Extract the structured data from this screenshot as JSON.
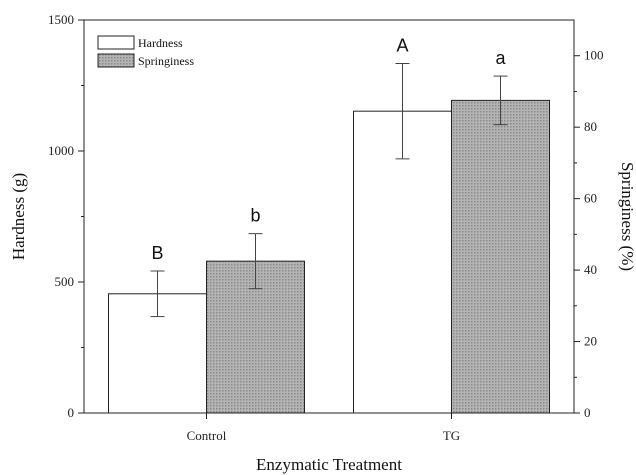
{
  "chart_data": {
    "type": "bar",
    "categories": [
      "Control",
      "TG"
    ],
    "xlabel": "Enzymatic Treatment",
    "ylabel": "Hardness (g)",
    "y2label": "Springiness (%)",
    "ylim": [
      0,
      1500
    ],
    "y2lim": [
      0,
      110
    ],
    "yticks": [
      0,
      500,
      1000,
      1500
    ],
    "y2ticks": [
      0,
      20,
      40,
      60,
      80,
      100
    ],
    "legend_position": "top-left",
    "grid": false,
    "series": [
      {
        "name": "Hardness",
        "axis": "left",
        "values": [
          455,
          1152
        ],
        "errors": [
          87,
          182
        ],
        "labels": [
          "B",
          "A"
        ],
        "color": "#ffffff"
      },
      {
        "name": "Springiness",
        "axis": "right",
        "values": [
          42.5,
          87.5
        ],
        "errors": [
          7.7,
          6.8
        ],
        "labels": [
          "b",
          "a"
        ],
        "color": "#a8a8a8"
      }
    ]
  }
}
